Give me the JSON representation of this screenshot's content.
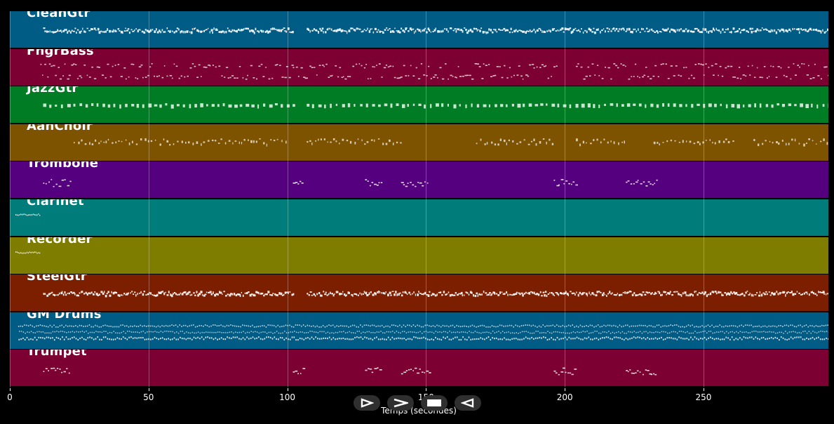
{
  "app": {
    "x_axis_label": "Temps (secondes)",
    "x_ticks": [
      0,
      50,
      100,
      150,
      200,
      250
    ],
    "x_range": [
      0,
      295
    ]
  },
  "tracks": [
    {
      "name": "CleanGtr",
      "color": "#005b85",
      "pattern": "dense",
      "segments": [
        [
          12,
          102
        ],
        [
          107,
          295
        ]
      ]
    },
    {
      "name": "FngrBass",
      "color": "#7c0032",
      "pattern": "bass",
      "segments": [
        [
          11,
          102
        ],
        [
          102,
          197
        ],
        [
          204,
          295
        ]
      ]
    },
    {
      "name": "JazzGtr",
      "color": "#007c24",
      "pattern": "comp",
      "segments": [
        [
          12,
          102
        ],
        [
          107,
          295
        ]
      ]
    },
    {
      "name": "AahChoir",
      "color": "#7e5300",
      "pattern": "choir",
      "segments": [
        [
          23,
          100
        ],
        [
          107,
          141
        ],
        [
          168,
          196
        ],
        [
          204,
          222
        ],
        [
          232,
          262
        ],
        [
          268,
          295
        ]
      ]
    },
    {
      "name": "Trombone",
      "color": "#55007e",
      "pattern": "stabs",
      "segments": [
        [
          12,
          22
        ],
        [
          102,
          106
        ],
        [
          128,
          134
        ],
        [
          141,
          151
        ],
        [
          196,
          204
        ],
        [
          222,
          233
        ]
      ]
    },
    {
      "name": "Clarinet",
      "color": "#007d7b",
      "pattern": "intro",
      "segments": [
        [
          2,
          11
        ]
      ]
    },
    {
      "name": "Recorder",
      "color": "#7e7d00",
      "pattern": "intro",
      "segments": [
        [
          2,
          11
        ]
      ]
    },
    {
      "name": "SteelGtr",
      "color": "#7c1f00",
      "pattern": "dense",
      "segments": [
        [
          12,
          102
        ],
        [
          107,
          295
        ]
      ]
    },
    {
      "name": "GM Drums",
      "color": "#005b85",
      "pattern": "drums",
      "segments": [
        [
          3,
          295
        ]
      ]
    },
    {
      "name": "Trumpet",
      "color": "#7c0032",
      "pattern": "stabs",
      "segments": [
        [
          12,
          22
        ],
        [
          102,
          106
        ],
        [
          128,
          134
        ],
        [
          141,
          151
        ],
        [
          196,
          204
        ],
        [
          222,
          233
        ]
      ]
    }
  ],
  "controls": [
    {
      "name": "play-icon"
    },
    {
      "name": "fast-forward-icon"
    },
    {
      "name": "stop-icon"
    },
    {
      "name": "rewind-icon"
    }
  ],
  "colors": {
    "background": "#000000",
    "note": "#ffffff",
    "separator": "#000000"
  }
}
